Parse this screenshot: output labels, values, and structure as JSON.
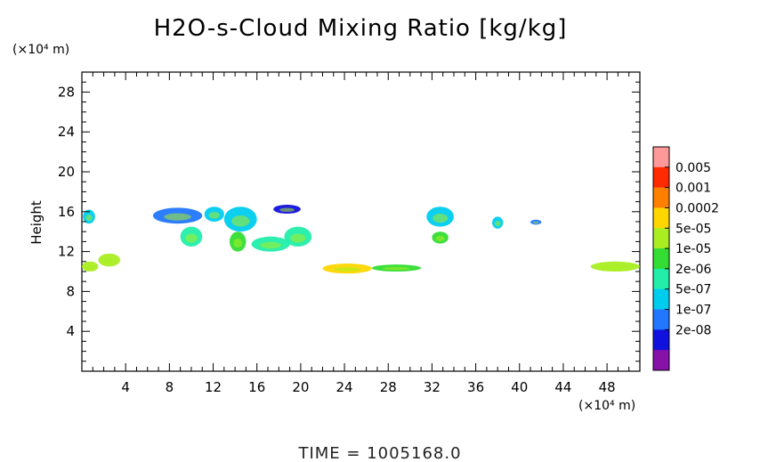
{
  "chart_data": {
    "type": "heatmap",
    "title": "H2O-s-Cloud Mixing Ratio [kg/kg]",
    "xlabel": "",
    "ylabel": "Height",
    "x_unit": "(×10⁴ m)",
    "y_unit": "(×10⁴ m)",
    "xlim": [
      0,
      51
    ],
    "ylim": [
      0,
      30
    ],
    "x_ticks": [
      "4",
      "8",
      "12",
      "16",
      "20",
      "24",
      "28",
      "32",
      "36",
      "40",
      "44",
      "48"
    ],
    "y_ticks": [
      "4",
      "8",
      "12",
      "16",
      "20",
      "24",
      "28"
    ],
    "colorbar": {
      "labels": [
        "0.005",
        "0.001",
        "0.0002",
        "5e-05",
        "1e-05",
        "2e-06",
        "5e-07",
        "1e-07",
        "2e-08"
      ],
      "colors": [
        "#ff9999",
        "#ff2a00",
        "#ff7f00",
        "#ffd700",
        "#aaee22",
        "#33dd33",
        "#22eeaa",
        "#00ccee",
        "#2277ff",
        "#1111dd",
        "#8811aa"
      ]
    },
    "regions": [
      {
        "x": [
          0.1,
          1.2
        ],
        "y": [
          14.8,
          16.2
        ],
        "level": "5e-07"
      },
      {
        "x": [
          6.5,
          11.0
        ],
        "y": [
          14.8,
          16.4
        ],
        "level": "1e-07"
      },
      {
        "x": [
          9.0,
          11.0
        ],
        "y": [
          12.5,
          14.5
        ],
        "level": "2e-06"
      },
      {
        "x": [
          11.2,
          13.0
        ],
        "y": [
          15.0,
          16.5
        ],
        "level": "5e-07"
      },
      {
        "x": [
          13.0,
          16.0
        ],
        "y": [
          14.0,
          16.5
        ],
        "level": "5e-07"
      },
      {
        "x": [
          13.5,
          15.0
        ],
        "y": [
          12.0,
          14.0
        ],
        "level": "1e-05"
      },
      {
        "x": [
          15.5,
          19.0
        ],
        "y": [
          12.0,
          13.5
        ],
        "level": "2e-06"
      },
      {
        "x": [
          18.5,
          21.0
        ],
        "y": [
          12.5,
          14.5
        ],
        "level": "2e-06"
      },
      {
        "x": [
          17.5,
          20.0
        ],
        "y": [
          15.8,
          16.7
        ],
        "level": "2e-08"
      },
      {
        "x": [
          31.5,
          34.0
        ],
        "y": [
          14.5,
          16.5
        ],
        "level": "5e-07"
      },
      {
        "x": [
          32.0,
          33.5
        ],
        "y": [
          12.8,
          14.0
        ],
        "level": "1e-05"
      },
      {
        "x": [
          22.0,
          26.5
        ],
        "y": [
          9.8,
          10.8
        ],
        "level": "0.0002"
      },
      {
        "x": [
          26.5,
          31.0
        ],
        "y": [
          10.0,
          10.7
        ],
        "level": "1e-05"
      },
      {
        "x": [
          1.5,
          3.5
        ],
        "y": [
          10.5,
          11.8
        ],
        "level": "5e-05"
      },
      {
        "x": [
          0.0,
          1.5
        ],
        "y": [
          10.0,
          11.0
        ],
        "level": "5e-05"
      },
      {
        "x": [
          46.5,
          51.0
        ],
        "y": [
          10.0,
          11.0
        ],
        "level": "5e-05"
      },
      {
        "x": [
          37.5,
          38.5
        ],
        "y": [
          14.3,
          15.5
        ],
        "level": "5e-07"
      },
      {
        "x": [
          41.0,
          42.0
        ],
        "y": [
          14.7,
          15.2
        ],
        "level": "1e-07"
      }
    ]
  },
  "footer": {
    "time_label": "TIME  =  1005168.0"
  }
}
